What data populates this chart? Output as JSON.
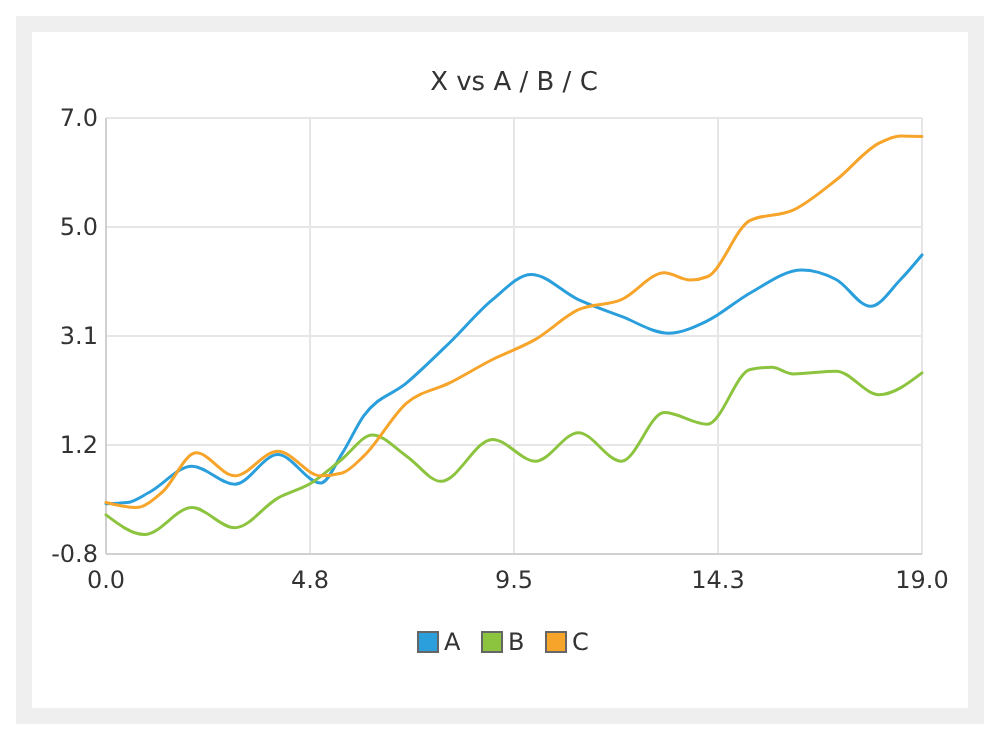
{
  "chart_data": {
    "type": "line",
    "title": "X vs A / B / C",
    "xlim": [
      0,
      19
    ],
    "xticks": [
      {
        "value": 0,
        "label": "0.0"
      },
      {
        "value": 4.75,
        "label": "4.8"
      },
      9.5,
      {
        "value": 14.25,
        "label": "14.3"
      },
      {
        "value": 19,
        "label": "19.0"
      }
    ],
    "ylim": [
      -0.8,
      7
    ],
    "yticks": [
      {
        "value": -0.8,
        "label": "-0.8"
      },
      {
        "value": 1.15,
        "label": "1.2"
      },
      3.1,
      {
        "value": 5.05,
        "label": "5.0"
      },
      {
        "value": 7,
        "label": "7.0"
      }
    ],
    "grid": true,
    "legend": "bottom",
    "marker": "none",
    "line_style": "solid",
    "series": [
      {
        "name": "A",
        "color": "#2a9fdc",
        "x": [
          0,
          0.5,
          1,
          2,
          3,
          4,
          5,
          5.5,
          6,
          7,
          8,
          9,
          9.9,
          11,
          12,
          13.1,
          14,
          15,
          16.2,
          17,
          17.8,
          18.5,
          19
        ],
        "values": [
          0.1,
          0.12,
          0.3,
          0.77,
          0.45,
          0.98,
          0.47,
          1.0,
          1.67,
          2.26,
          2.98,
          3.75,
          4.2,
          3.75,
          3.45,
          3.15,
          3.37,
          3.87,
          4.28,
          4.11,
          3.63,
          4.11,
          4.55
        ]
      },
      {
        "name": "B",
        "color": "#8cc43f",
        "x": [
          0,
          0.9,
          2,
          3,
          4,
          4.8,
          5.5,
          6.2,
          7,
          7.8,
          9,
          10,
          11,
          12,
          13,
          14,
          15,
          15.5,
          16,
          17,
          18,
          19
        ],
        "values": [
          -0.1,
          -0.45,
          0.03,
          -0.33,
          0.2,
          0.48,
          0.9,
          1.33,
          0.95,
          0.5,
          1.25,
          0.86,
          1.37,
          0.86,
          1.73,
          1.52,
          2.5,
          2.54,
          2.42,
          2.47,
          2.05,
          2.44
        ]
      },
      {
        "name": "C",
        "color": "#f7a42a",
        "x": [
          0,
          0.7,
          1.3,
          2.1,
          3,
          4,
          5,
          5.5,
          6,
          7,
          8,
          9,
          10,
          11,
          12,
          13,
          13.6,
          14,
          15,
          16,
          17,
          18,
          18.5,
          19
        ],
        "values": [
          0.12,
          0.03,
          0.3,
          1.01,
          0.6,
          1.04,
          0.6,
          0.65,
          0.95,
          1.9,
          2.26,
          2.68,
          3.04,
          3.57,
          3.75,
          4.23,
          4.1,
          4.16,
          5.17,
          5.35,
          5.89,
          6.55,
          6.68,
          6.67
        ]
      }
    ]
  }
}
